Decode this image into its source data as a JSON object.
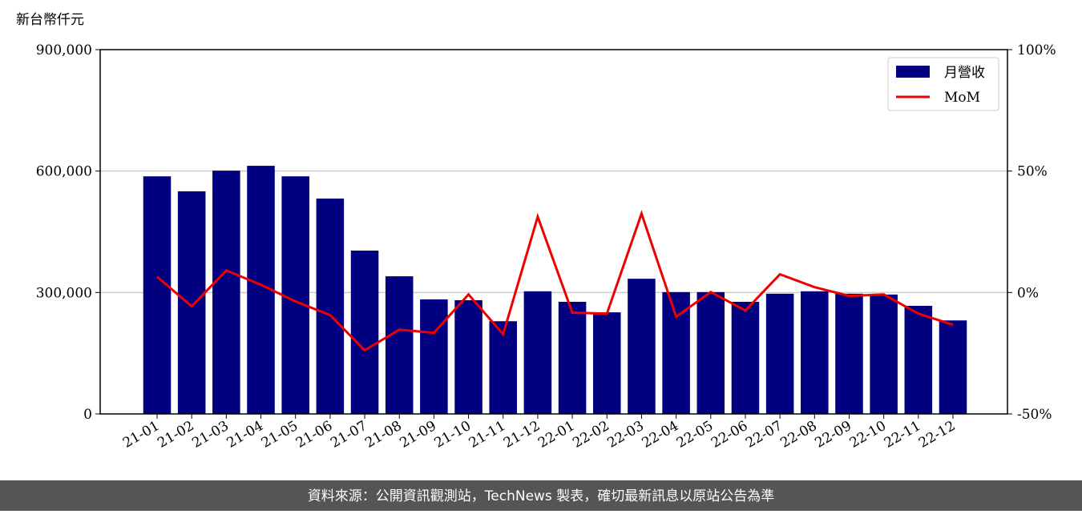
{
  "chart_data": {
    "type": "bar-line",
    "y_label": "新台幣仟元",
    "categories": [
      "21-01",
      "21-02",
      "21-03",
      "21-04",
      "21-05",
      "21-06",
      "21-07",
      "21-08",
      "21-09",
      "21-10",
      "21-11",
      "21-12",
      "22-01",
      "22-02",
      "22-03",
      "22-04",
      "22-05",
      "22-06",
      "22-07",
      "22-08",
      "22-09",
      "22-10",
      "22-11",
      "22-12"
    ],
    "series": [
      {
        "name": "月營收",
        "color": "#000080",
        "type": "bar",
        "values": [
          587000,
          550000,
          601000,
          613000,
          587000,
          532000,
          403500,
          340000,
          283000,
          281000,
          229000,
          303000,
          277000,
          251000,
          334000,
          301000,
          301000,
          277000,
          297000,
          303000,
          297000,
          295000,
          267000,
          231000
        ]
      },
      {
        "name": "MoM",
        "color": "#ee0000",
        "type": "line",
        "axis": "y2",
        "values": [
          6.5,
          -5.7,
          9.1,
          3.2,
          -3.7,
          -9.3,
          -23.8,
          -15.3,
          -16.6,
          -0.8,
          -17.2,
          31.2,
          -8.3,
          -8.7,
          32.5,
          -10.0,
          0.2,
          -7.4,
          7.5,
          2.2,
          -1.4,
          -0.8,
          -8.7,
          -13.3
        ]
      }
    ],
    "ylim": [
      0,
      900000
    ],
    "yticks": [
      0,
      {
        "value": 300000,
        "label": "300,000"
      },
      {
        "value": 600000,
        "label": "600,000"
      },
      {
        "value": 900000,
        "label": "900,000"
      }
    ],
    "y2lim": [
      -50,
      100
    ],
    "y2ticks": [
      {
        "value": -50,
        "label": "-50%"
      },
      {
        "value": 0,
        "label": "0%"
      },
      {
        "value": 50,
        "label": "50%"
      },
      {
        "value": 100,
        "label": "100%"
      }
    ],
    "grid": true,
    "legend": "upper right",
    "footer": "資料來源：公開資訊觀測站，TechNews 製表，確切最新訊息以原站公告為準"
  }
}
